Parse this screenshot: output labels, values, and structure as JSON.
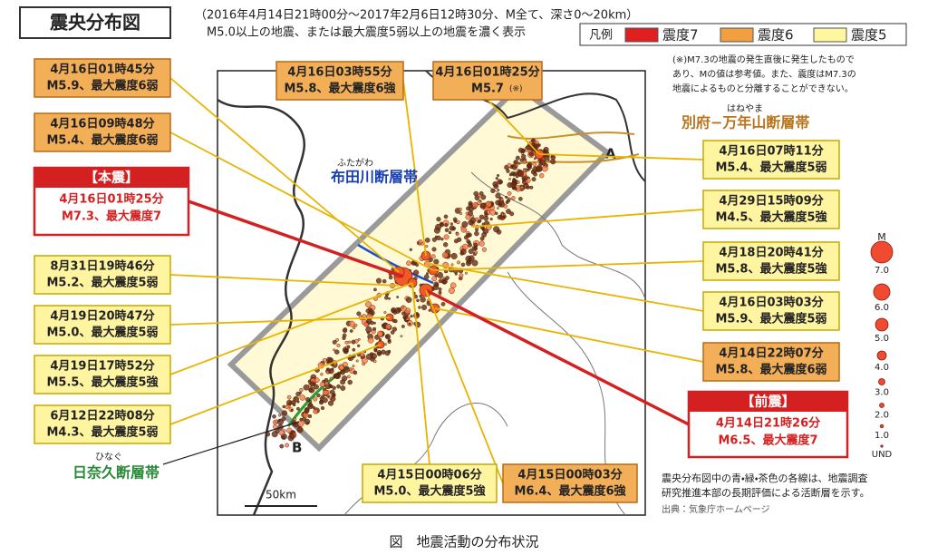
{
  "header": {
    "title": "震央分布図",
    "subtitle_lines": [
      "（2016年4月14日21時00分～2017年2月6日12時30分、M全て、深さ0～20km）",
      "M5.0以上の地震、または最大震度5弱以上の地震を濃く表示"
    ]
  },
  "legend": {
    "label": "凡例",
    "items": [
      "震度7",
      "震度6",
      "震度5"
    ]
  },
  "note_lines": [
    "(※)M7.3の地震の発生直後に発生したもので",
    "あり、Mの値は参考値。また、震度はM7.3の",
    "地震によるものと分離することができない。"
  ],
  "callouts": [
    {
      "lines": [
        "4月16日01時45分",
        "M5.9、最大震度6弱"
      ]
    },
    {
      "lines": [
        "4月16日03時55分",
        "M5.8、最大震度6強"
      ]
    },
    {
      "lines": [
        "4月16日01時25分",
        "M5.7"
      ],
      "mark": "(※)"
    },
    {
      "lines": [
        "4月16日09時48分",
        "M5.4、最大震度6弱"
      ]
    },
    {
      "heading": "【本震】",
      "lines": [
        "4月16日01時25分",
        "M7.3、最大震度7"
      ]
    },
    {
      "lines": [
        "8月31日19時46分",
        "M5.2、最大震度5弱"
      ]
    },
    {
      "lines": [
        "4月19日20時47分",
        "M5.0、最大震度5弱"
      ]
    },
    {
      "lines": [
        "4月19日17時52分",
        "M5.5、最大震度5強"
      ]
    },
    {
      "lines": [
        "6月12日22時08分",
        "M4.3、最大震度5弱"
      ]
    },
    {
      "lines": [
        "4月16日07時11分",
        "M5.4、最大震度5弱"
      ]
    },
    {
      "lines": [
        "4月29日15時09分",
        "M4.5、最大震度5強"
      ]
    },
    {
      "lines": [
        "4月18日20時41分",
        "M5.8、最大震度5強"
      ]
    },
    {
      "lines": [
        "4月16日03時03分",
        "M5.9、最大震度5弱"
      ]
    },
    {
      "lines": [
        "4月14日22時07分",
        "M5.8、最大震度6弱"
      ]
    },
    {
      "heading": "【前震】",
      "lines": [
        "4月14日21時26分",
        "M6.5、最大震度7"
      ]
    },
    {
      "lines": [
        "4月15日00時06分",
        "M5.0、最大震度5強"
      ]
    },
    {
      "lines": [
        "4月15日00時03分",
        "M6.4、最大震度6強"
      ]
    }
  ],
  "faults": [
    {
      "name": "別府−万年山断層帯",
      "ruby": "はねやま"
    },
    {
      "name": "布田川断層帯",
      "ruby": "ふたがわ"
    },
    {
      "name": "日奈久断層帯",
      "ruby": "ひなぐ"
    }
  ],
  "magnitude_scale": {
    "title": "M",
    "labels": [
      "7.0",
      "6.0",
      "5.0",
      "4.0",
      "3.0",
      "2.0",
      "1.0",
      "UND"
    ]
  },
  "map_labels": {
    "a": "A",
    "b": "B",
    "scale": "50km"
  },
  "footer_lines": [
    "震央分布図中の青・緑・茶色の各線は、地震調査",
    "研究推進本部の長期評価による活断層を示す。"
  ],
  "source": "出典：気象庁ホームページ",
  "caption": "図　地震活動の分布状況"
}
